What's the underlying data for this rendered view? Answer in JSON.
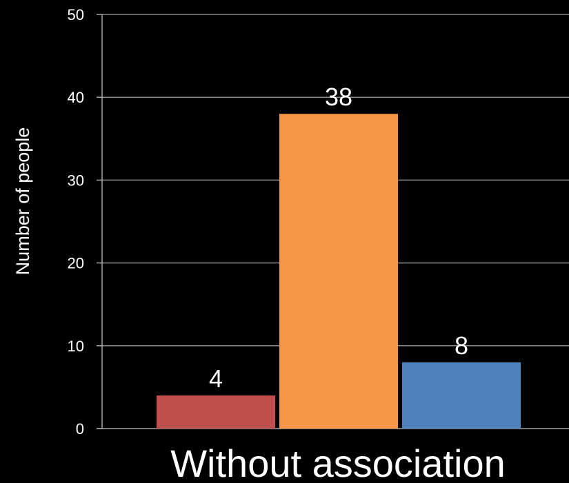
{
  "chart_data": {
    "type": "bar",
    "categories": [
      "Without association"
    ],
    "series": [
      {
        "values": [
          4
        ],
        "color": "#c0504d"
      },
      {
        "values": [
          38
        ],
        "color": "#f79646"
      },
      {
        "values": [
          8
        ],
        "color": "#4f81bd"
      }
    ],
    "xlabel": "Without association",
    "ylabel": "Number of people",
    "ylim": [
      0,
      50
    ],
    "yticks": [
      0,
      10,
      20,
      30,
      40,
      50
    ],
    "grid": true,
    "data_labels": true
  },
  "colors": {
    "background": "#000000",
    "text": "#ffffff",
    "gridline": "#888888",
    "axis": "#a6a6a6"
  }
}
